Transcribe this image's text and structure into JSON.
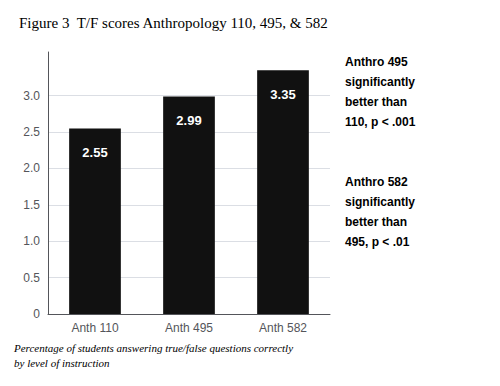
{
  "chart_data": {
    "type": "bar",
    "title": "Figure 3  T/F scores Anthropology 110, 495, & 582",
    "categories": [
      "Anth 110",
      "Anth 495",
      "Anth 582"
    ],
    "values": [
      2.55,
      2.99,
      3.35
    ],
    "color": "#111111",
    "data_labels": true,
    "ylim": [
      0,
      3.6
    ],
    "yticks": [
      0,
      0.5,
      {
        "value": 1.0,
        "label": "1.0"
      },
      1.5,
      {
        "value": 2.0,
        "label": "2.0"
      },
      2.5,
      {
        "value": 3.0,
        "label": "3.0"
      }
    ],
    "grid": true,
    "annotations": [
      "Anthro 495\nsignificantly\nbetter than\n110, p < .001",
      "Anthro 582\nsignificantly\nbetter than\n495, p < .01",
      "Percentage of students answering true/false questions correctly\nby level of instruction"
    ]
  }
}
